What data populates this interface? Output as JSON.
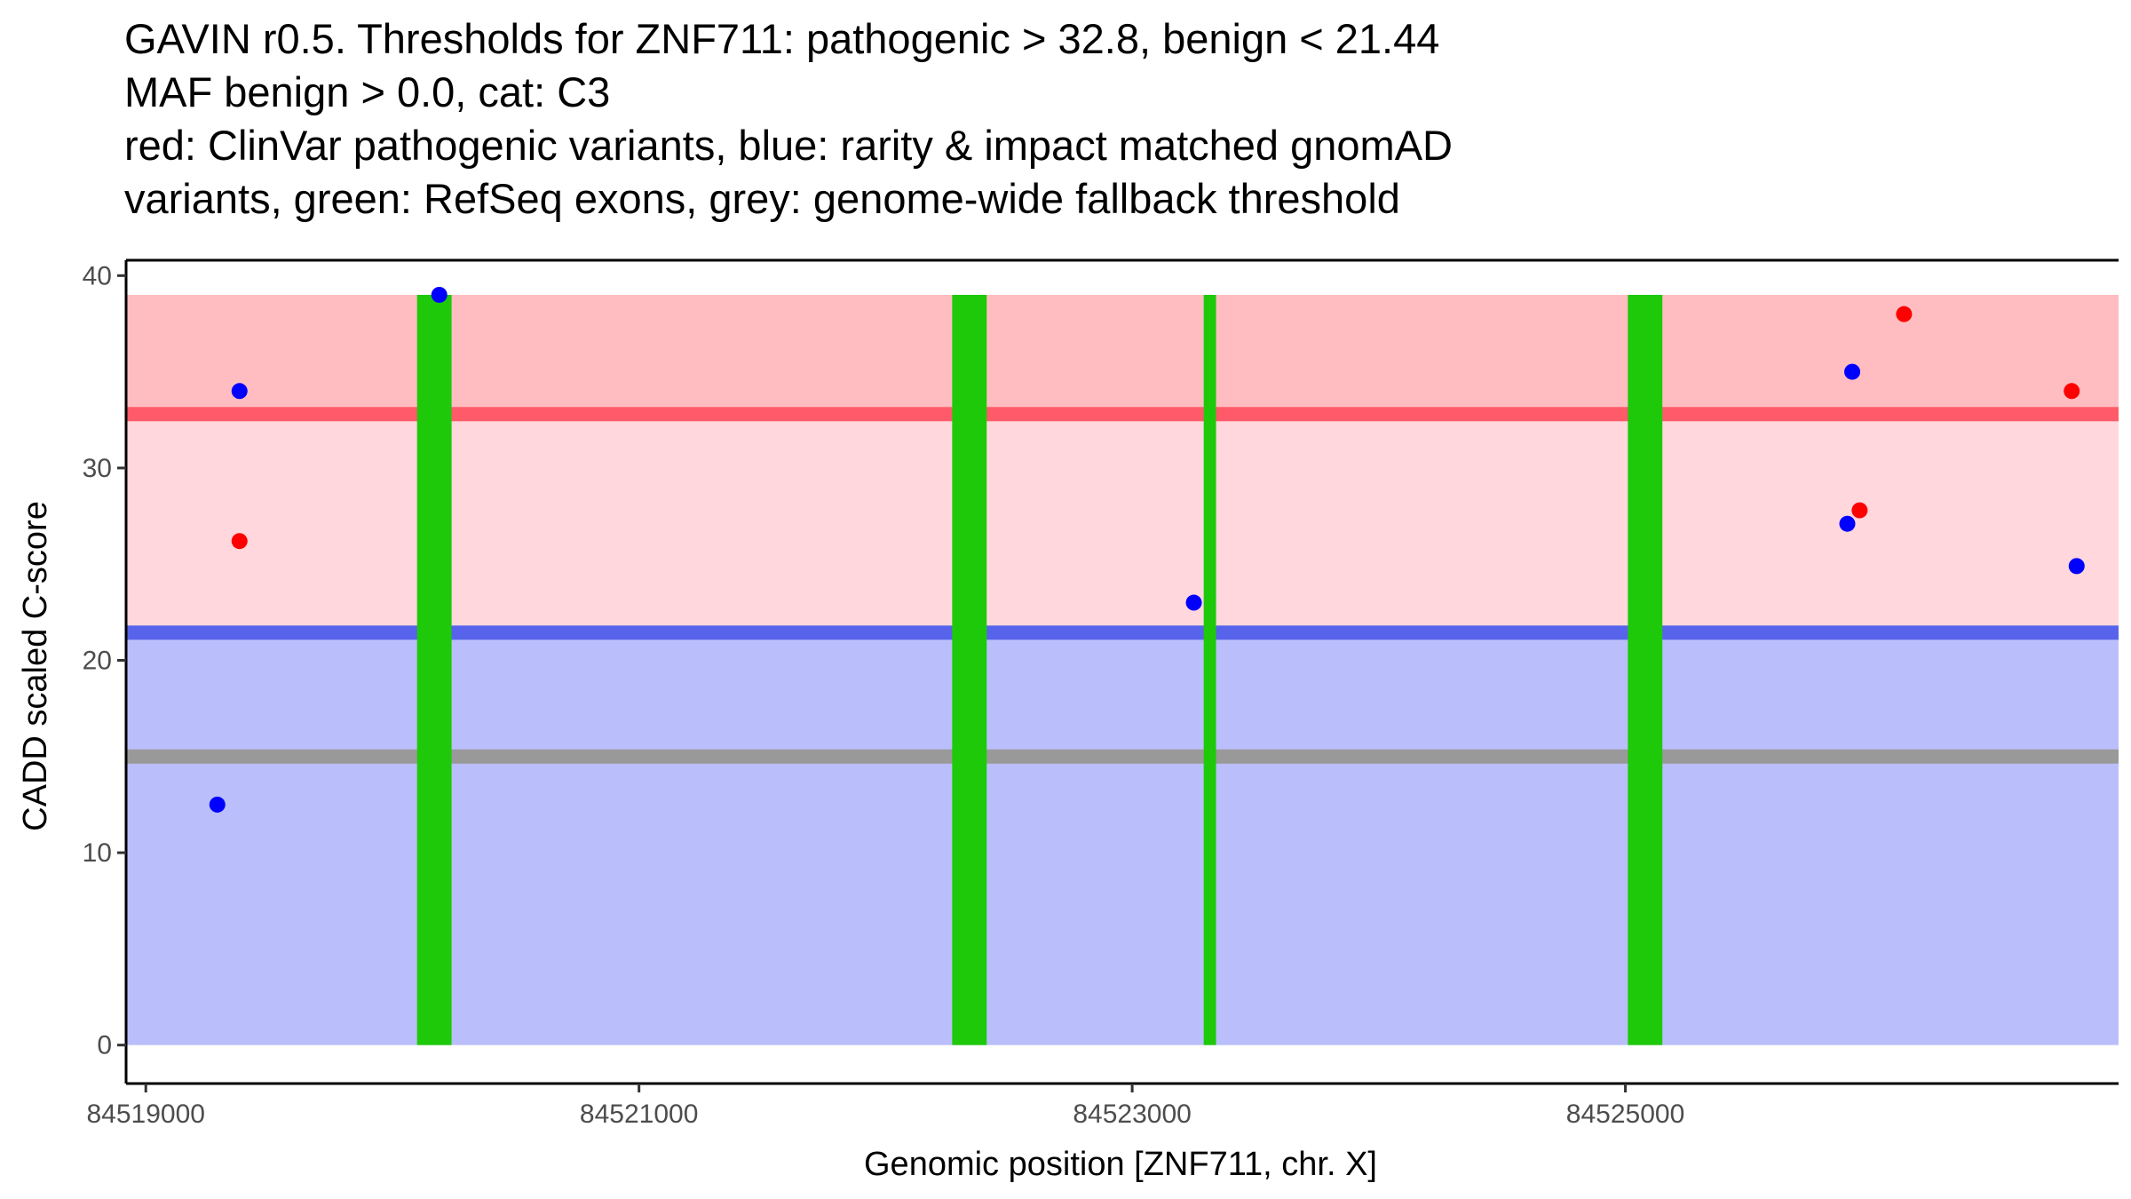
{
  "title_lines": [
    "GAVIN r0.5. Thresholds for ZNF711: pathogenic > 32.8, benign < 21.44",
    "MAF benign > 0.0, cat: C3",
    "red: ClinVar pathogenic variants, blue: rarity & impact matched gnomAD",
    "variants, green: RefSeq exons, grey: genome-wide fallback threshold"
  ],
  "chart_data": {
    "type": "scatter",
    "xlabel": "Genomic position [ZNF711, chr. X]",
    "ylabel": "CADD scaled C-score",
    "xlim": [
      84518920,
      84527000
    ],
    "ylim": [
      -2,
      40.8
    ],
    "x_ticks": [
      84519000,
      84521000,
      84523000,
      84525000
    ],
    "x_tick_labels": [
      "84519000",
      "84521000",
      "84523000",
      "84525000"
    ],
    "y_ticks": [
      0,
      10,
      20,
      30,
      40
    ],
    "y_tick_labels": [
      "0",
      "10",
      "20",
      "30",
      "40"
    ],
    "x_range_start": 84518920,
    "bands": [
      {
        "name": "benign-region",
        "y0": 0,
        "y1": 21.44,
        "color": "#babefa"
      },
      {
        "name": "intermediate-region",
        "y0": 21.44,
        "y1": 32.8,
        "color": "#ffd7dc"
      },
      {
        "name": "pathogenic-region",
        "y0": 32.8,
        "y1": 39,
        "color": "#ffbdc2"
      }
    ],
    "thresholds": [
      {
        "name": "pathogenic-threshold",
        "value": 32.8,
        "color": "#ff5a69"
      },
      {
        "name": "benign-threshold",
        "value": 21.44,
        "color": "#5763eb"
      },
      {
        "name": "fallback-threshold",
        "value": 15,
        "color": "#999999"
      }
    ],
    "exons": [
      {
        "start": 84520100,
        "end": 84520240
      },
      {
        "start": 84522270,
        "end": 84522410
      },
      {
        "start": 84523290,
        "end": 84523340
      },
      {
        "start": 84525010,
        "end": 84525150
      }
    ],
    "exon_color": "#1ec90a",
    "exon_top": 39,
    "series": [
      {
        "name": "ClinVar pathogenic variants",
        "color": "#ff0000",
        "points": [
          {
            "x": 84519380,
            "y": 26.2
          },
          {
            "x": 84525950,
            "y": 27.8
          },
          {
            "x": 84526130,
            "y": 38
          },
          {
            "x": 84526810,
            "y": 34
          }
        ]
      },
      {
        "name": "gnomAD matched variants",
        "color": "#0000ff",
        "points": [
          {
            "x": 84519290,
            "y": 12.5
          },
          {
            "x": 84519380,
            "y": 34
          },
          {
            "x": 84520190,
            "y": 39
          },
          {
            "x": 84523250,
            "y": 23
          },
          {
            "x": 84525900,
            "y": 27.1
          },
          {
            "x": 84525920,
            "y": 35
          },
          {
            "x": 84526830,
            "y": 24.9
          }
        ]
      }
    ]
  }
}
